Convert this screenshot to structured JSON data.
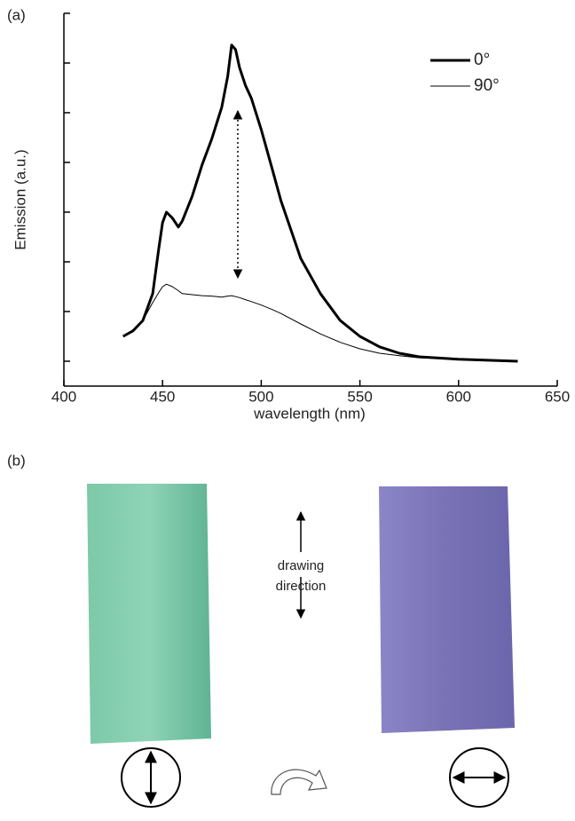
{
  "chart_data": {
    "type": "line",
    "panel_label": "(a)",
    "x_label": "wavelength (nm)",
    "y_label": "Emission (a.u.)",
    "x": [
      430,
      435,
      440,
      445,
      448,
      450,
      452,
      455,
      458,
      460,
      465,
      470,
      475,
      480,
      483,
      485,
      487,
      489,
      492,
      495,
      500,
      505,
      510,
      520,
      530,
      540,
      550,
      560,
      570,
      580,
      600,
      630
    ],
    "series": [
      {
        "name": "0°",
        "color": "#000000",
        "width": 3,
        "values": [
          0.5,
          0.61,
          0.82,
          1.36,
          2.25,
          2.79,
          3.0,
          2.88,
          2.7,
          2.82,
          3.32,
          3.95,
          4.48,
          5.11,
          5.73,
          6.36,
          6.27,
          5.91,
          5.55,
          5.29,
          4.66,
          3.95,
          3.23,
          2.07,
          1.36,
          0.82,
          0.5,
          0.29,
          0.16,
          0.09,
          0.04,
          0
        ]
      },
      {
        "name": "90°",
        "color": "#000000",
        "width": 1,
        "values": [
          0.5,
          0.62,
          0.82,
          1.18,
          1.38,
          1.5,
          1.55,
          1.5,
          1.42,
          1.36,
          1.34,
          1.32,
          1.31,
          1.29,
          1.31,
          1.32,
          1.3,
          1.28,
          1.24,
          1.2,
          1.13,
          1.05,
          0.96,
          0.75,
          0.55,
          0.38,
          0.25,
          0.16,
          0.11,
          0.07,
          0.04,
          0
        ]
      }
    ],
    "xlim": [
      400,
      650
    ],
    "xticks": [
      400,
      450,
      500,
      550,
      600,
      650
    ],
    "ylim": [
      -0.5,
      7
    ],
    "yticks": [
      0,
      1,
      2,
      3,
      4,
      5,
      6,
      7
    ],
    "legend": "upper-right"
  },
  "panel_b": {
    "panel_label": "(b)",
    "direction_lines": [
      "drawing",
      "direction"
    ]
  }
}
